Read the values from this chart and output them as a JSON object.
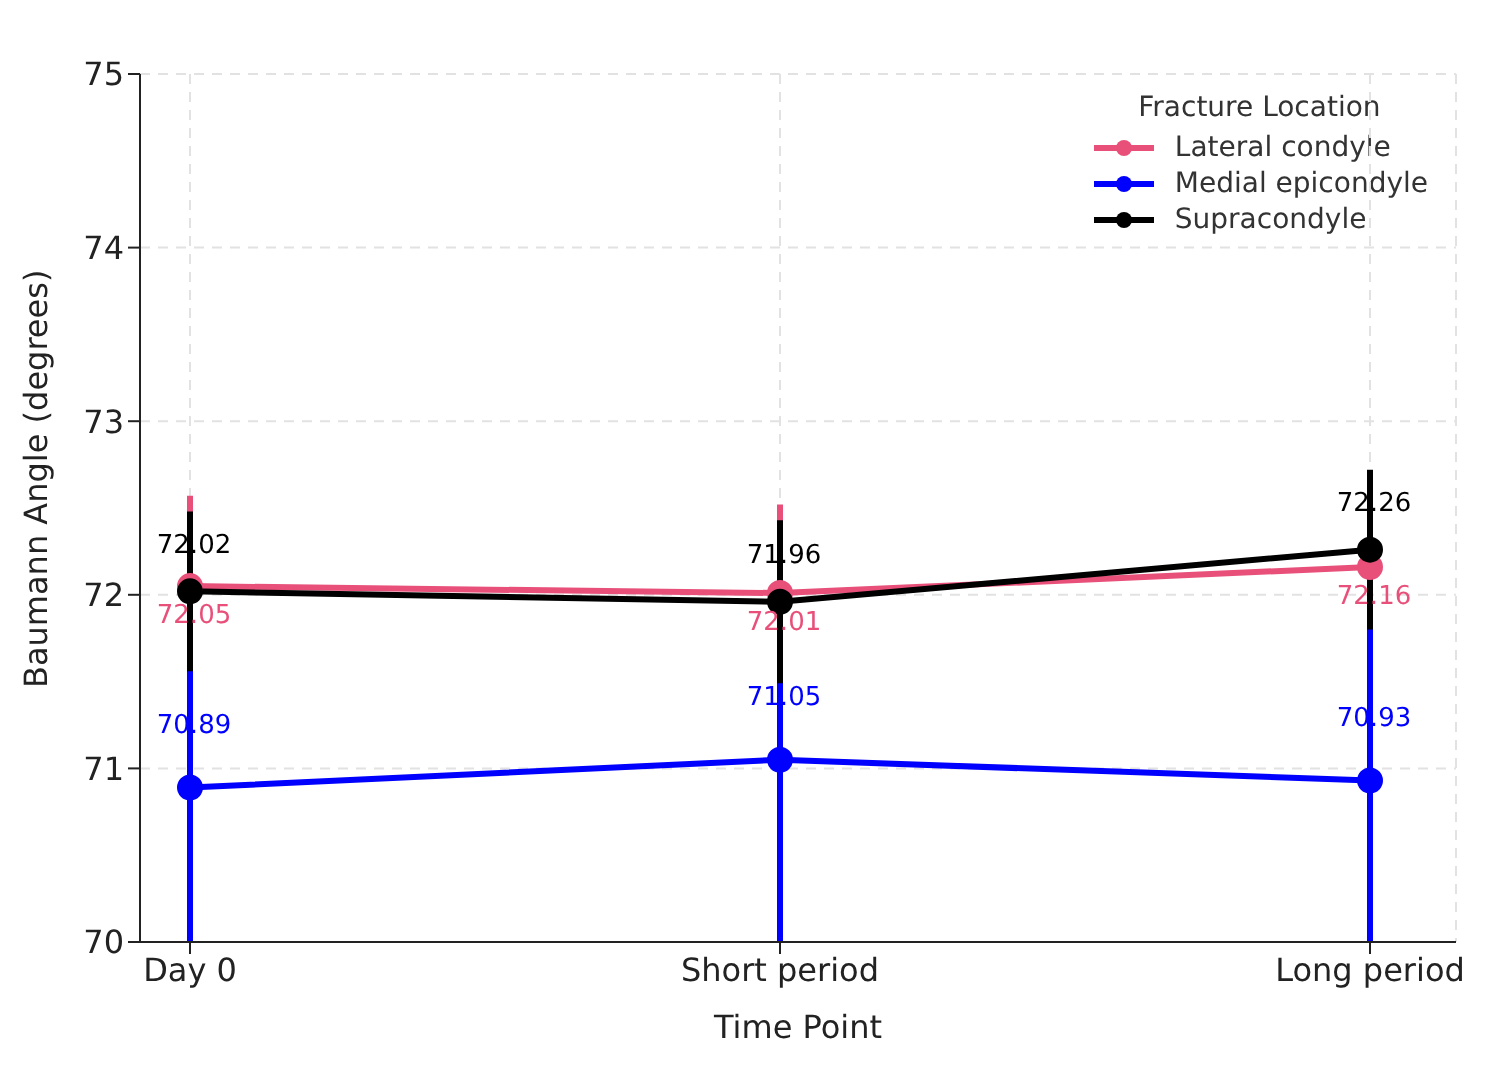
{
  "chart_data": {
    "type": "line",
    "xlabel": "Time Point",
    "ylabel": "Baumann Angle (degrees)",
    "legend_title": "Fracture Location",
    "categories": [
      "Day 0",
      "Short period",
      "Long period"
    ],
    "series": [
      {
        "name": "Lateral condyle",
        "color": "#e8507a",
        "values": [
          72.05,
          72.01,
          72.16
        ],
        "errors": [
          0.52,
          0.51,
          null
        ]
      },
      {
        "name": "Medial epicondyle",
        "color": "#0000ff",
        "values": [
          70.89,
          71.05,
          70.93
        ],
        "errors": [
          0.89,
          1.05,
          0.93
        ]
      },
      {
        "name": "Supracondyle",
        "color": "#000000",
        "values": [
          72.02,
          71.96,
          72.26
        ],
        "errors": [
          0.46,
          0.47,
          0.46
        ]
      }
    ],
    "ylim": [
      70,
      75
    ],
    "yticks": [
      70,
      71,
      72,
      73,
      74,
      75
    ],
    "grid": true,
    "legend": "top right",
    "marker": "circle",
    "line_style": "solid",
    "data_labels": true
  }
}
